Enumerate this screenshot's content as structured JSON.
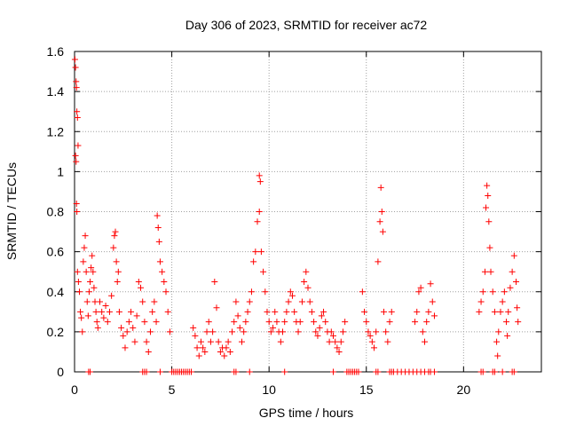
{
  "chart_data": {
    "type": "scatter",
    "title": "Day 306 of 2023, SRMTID for receiver ac72",
    "xlabel": "GPS time / hours",
    "ylabel": "SRMTID / TECUs",
    "xlim": [
      0,
      24
    ],
    "ylim": [
      0,
      1.6
    ],
    "xticks": [
      0,
      5,
      10,
      15,
      20
    ],
    "yticks": [
      0,
      0.2,
      0.4,
      0.6,
      0.8,
      1,
      1.2,
      1.4,
      1.6
    ],
    "xtick_labels": [
      "0",
      "5",
      "10",
      "15",
      "20"
    ],
    "ytick_labels": [
      "0",
      "0.2",
      "0.4",
      "0.6",
      "0.8",
      "1",
      "1.2",
      "1.4",
      "1.6"
    ],
    "grid": true,
    "marker": "+",
    "color": "#ff0000",
    "series": [
      {
        "points": [
          [
            0.02,
            1.56
          ],
          [
            0.05,
            1.52
          ],
          [
            0.08,
            1.45
          ],
          [
            0.1,
            1.42
          ],
          [
            0.12,
            1.3
          ],
          [
            0.15,
            1.27
          ],
          [
            0.18,
            1.13
          ],
          [
            0.05,
            1.08
          ],
          [
            0.08,
            1.05
          ],
          [
            0.1,
            0.84
          ],
          [
            0.12,
            0.8
          ],
          [
            0.15,
            0.5
          ],
          [
            0.2,
            0.45
          ],
          [
            0.25,
            0.4
          ],
          [
            0.3,
            0.3
          ],
          [
            0.35,
            0.27
          ],
          [
            0.4,
            0.2
          ],
          [
            0.45,
            0.55
          ],
          [
            0.5,
            0.62
          ],
          [
            0.55,
            0.68
          ],
          [
            0.6,
            0.5
          ],
          [
            0.65,
            0.35
          ],
          [
            0.7,
            0.28
          ],
          [
            0.75,
            0.4
          ],
          [
            0.8,
            0.45
          ],
          [
            0.85,
            0.52
          ],
          [
            0.9,
            0.58
          ],
          [
            0.95,
            0.5
          ],
          [
            1.0,
            0.42
          ],
          [
            1.05,
            0.35
          ],
          [
            1.1,
            0.3
          ],
          [
            1.15,
            0.25
          ],
          [
            1.2,
            0.22
          ],
          [
            1.3,
            0.35
          ],
          [
            1.4,
            0.3
          ],
          [
            1.5,
            0.27
          ],
          [
            1.6,
            0.33
          ],
          [
            1.7,
            0.25
          ],
          [
            1.8,
            0.3
          ],
          [
            1.9,
            0.38
          ],
          [
            2.0,
            0.62
          ],
          [
            2.05,
            0.68
          ],
          [
            2.1,
            0.7
          ],
          [
            2.15,
            0.55
          ],
          [
            2.2,
            0.45
          ],
          [
            2.25,
            0.5
          ],
          [
            2.3,
            0.3
          ],
          [
            2.4,
            0.22
          ],
          [
            2.5,
            0.18
          ],
          [
            2.6,
            0.12
          ],
          [
            2.7,
            0.2
          ],
          [
            2.8,
            0.25
          ],
          [
            2.9,
            0.3
          ],
          [
            3.0,
            0.22
          ],
          [
            3.1,
            0.15
          ],
          [
            3.2,
            0.28
          ],
          [
            3.3,
            0.45
          ],
          [
            3.4,
            0.42
          ],
          [
            3.5,
            0.35
          ],
          [
            3.6,
            0.25
          ],
          [
            3.7,
            0.15
          ],
          [
            3.8,
            0.1
          ],
          [
            3.9,
            0.2
          ],
          [
            4.0,
            0.3
          ],
          [
            4.1,
            0.35
          ],
          [
            4.2,
            0.25
          ],
          [
            4.25,
            0.78
          ],
          [
            4.3,
            0.72
          ],
          [
            4.35,
            0.65
          ],
          [
            4.4,
            0.55
          ],
          [
            4.5,
            0.5
          ],
          [
            4.6,
            0.45
          ],
          [
            4.7,
            0.4
          ],
          [
            4.8,
            0.3
          ],
          [
            4.9,
            0.2
          ],
          [
            6.1,
            0.22
          ],
          [
            6.2,
            0.18
          ],
          [
            6.3,
            0.12
          ],
          [
            6.4,
            0.08
          ],
          [
            6.5,
            0.15
          ],
          [
            6.6,
            0.12
          ],
          [
            6.7,
            0.1
          ],
          [
            6.8,
            0.2
          ],
          [
            6.9,
            0.25
          ],
          [
            7.0,
            0.15
          ],
          [
            7.1,
            0.2
          ],
          [
            7.2,
            0.45
          ],
          [
            7.3,
            0.32
          ],
          [
            7.4,
            0.15
          ],
          [
            7.5,
            0.1
          ],
          [
            7.6,
            0.12
          ],
          [
            7.7,
            0.08
          ],
          [
            7.8,
            0.12
          ],
          [
            7.9,
            0.15
          ],
          [
            8.0,
            0.1
          ],
          [
            8.1,
            0.2
          ],
          [
            8.2,
            0.25
          ],
          [
            8.3,
            0.35
          ],
          [
            8.4,
            0.28
          ],
          [
            8.5,
            0.22
          ],
          [
            8.6,
            0.15
          ],
          [
            8.7,
            0.2
          ],
          [
            8.8,
            0.25
          ],
          [
            8.9,
            0.3
          ],
          [
            9.0,
            0.35
          ],
          [
            9.1,
            0.4
          ],
          [
            9.2,
            0.55
          ],
          [
            9.3,
            0.6
          ],
          [
            9.4,
            0.75
          ],
          [
            9.5,
            0.8
          ],
          [
            9.5,
            0.98
          ],
          [
            9.55,
            0.95
          ],
          [
            9.6,
            0.6
          ],
          [
            9.7,
            0.5
          ],
          [
            9.8,
            0.4
          ],
          [
            9.9,
            0.3
          ],
          [
            10.0,
            0.25
          ],
          [
            10.1,
            0.2
          ],
          [
            10.2,
            0.22
          ],
          [
            10.3,
            0.3
          ],
          [
            10.4,
            0.25
          ],
          [
            10.5,
            0.2
          ],
          [
            10.6,
            0.15
          ],
          [
            10.7,
            0.2
          ],
          [
            10.8,
            0.25
          ],
          [
            10.9,
            0.3
          ],
          [
            11.0,
            0.35
          ],
          [
            11.1,
            0.4
          ],
          [
            11.2,
            0.38
          ],
          [
            11.3,
            0.3
          ],
          [
            11.4,
            0.25
          ],
          [
            11.5,
            0.2
          ],
          [
            11.6,
            0.25
          ],
          [
            11.7,
            0.35
          ],
          [
            11.8,
            0.45
          ],
          [
            11.9,
            0.5
          ],
          [
            12.0,
            0.42
          ],
          [
            12.1,
            0.35
          ],
          [
            12.2,
            0.3
          ],
          [
            12.3,
            0.25
          ],
          [
            12.4,
            0.2
          ],
          [
            12.5,
            0.18
          ],
          [
            12.6,
            0.22
          ],
          [
            12.7,
            0.28
          ],
          [
            12.8,
            0.3
          ],
          [
            12.9,
            0.25
          ],
          [
            13.0,
            0.2
          ],
          [
            13.1,
            0.15
          ],
          [
            13.2,
            0.2
          ],
          [
            13.3,
            0.18
          ],
          [
            13.4,
            0.15
          ],
          [
            13.5,
            0.12
          ],
          [
            13.6,
            0.1
          ],
          [
            13.7,
            0.15
          ],
          [
            13.8,
            0.2
          ],
          [
            13.9,
            0.25
          ],
          [
            14.8,
            0.4
          ],
          [
            14.9,
            0.3
          ],
          [
            15.0,
            0.25
          ],
          [
            15.1,
            0.2
          ],
          [
            15.2,
            0.18
          ],
          [
            15.3,
            0.15
          ],
          [
            15.4,
            0.12
          ],
          [
            15.5,
            0.2
          ],
          [
            15.6,
            0.55
          ],
          [
            15.7,
            0.75
          ],
          [
            15.75,
            0.92
          ],
          [
            15.8,
            0.8
          ],
          [
            15.85,
            0.7
          ],
          [
            15.9,
            0.3
          ],
          [
            16.0,
            0.2
          ],
          [
            16.1,
            0.15
          ],
          [
            16.2,
            0.25
          ],
          [
            16.3,
            0.3
          ],
          [
            17.5,
            0.25
          ],
          [
            17.6,
            0.3
          ],
          [
            17.7,
            0.4
          ],
          [
            17.8,
            0.42
          ],
          [
            17.9,
            0.2
          ],
          [
            18.0,
            0.15
          ],
          [
            18.1,
            0.25
          ],
          [
            18.2,
            0.3
          ],
          [
            18.3,
            0.44
          ],
          [
            18.4,
            0.35
          ],
          [
            18.5,
            0.28
          ],
          [
            20.8,
            0.3
          ],
          [
            20.9,
            0.35
          ],
          [
            21.0,
            0.4
          ],
          [
            21.1,
            0.5
          ],
          [
            21.15,
            0.82
          ],
          [
            21.2,
            0.93
          ],
          [
            21.25,
            0.88
          ],
          [
            21.3,
            0.75
          ],
          [
            21.35,
            0.62
          ],
          [
            21.4,
            0.5
          ],
          [
            21.5,
            0.4
          ],
          [
            21.6,
            0.3
          ],
          [
            21.7,
            0.15
          ],
          [
            21.75,
            0.08
          ],
          [
            21.8,
            0.2
          ],
          [
            21.9,
            0.3
          ],
          [
            22.0,
            0.35
          ],
          [
            22.1,
            0.4
          ],
          [
            22.2,
            0.25
          ],
          [
            22.25,
            0.18
          ],
          [
            22.3,
            0.3
          ],
          [
            22.4,
            0.42
          ],
          [
            22.5,
            0.5
          ],
          [
            22.6,
            0.58
          ],
          [
            22.7,
            0.45
          ],
          [
            22.75,
            0.32
          ],
          [
            22.8,
            0.25
          ]
        ]
      }
    ],
    "zero_points": [
      0.72,
      0.8,
      3.5,
      3.6,
      3.7,
      4.4,
      5.0,
      5.1,
      5.2,
      5.3,
      5.4,
      5.5,
      5.6,
      5.7,
      5.8,
      5.9,
      6.0,
      8.2,
      8.3,
      9.0,
      10.8,
      13.3,
      14.0,
      14.1,
      14.2,
      14.3,
      14.4,
      14.5,
      14.6,
      15.5,
      15.6,
      16.2,
      16.3,
      16.4,
      16.6,
      16.8,
      17.0,
      17.2,
      17.4,
      17.6,
      17.8,
      18.0,
      18.2,
      18.3,
      18.5,
      20.9,
      21.0,
      21.5,
      21.6,
      22.0,
      22.5,
      22.6
    ]
  }
}
